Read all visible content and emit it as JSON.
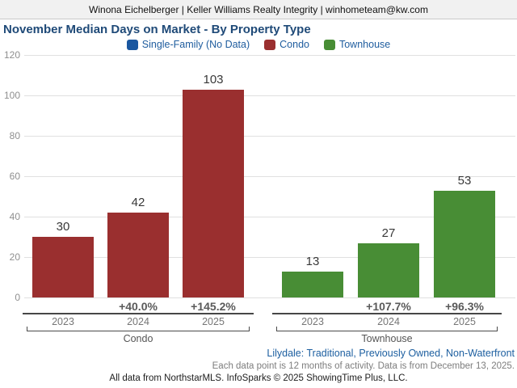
{
  "header": {
    "contact": "Winona Eichelberger | Keller Williams Realty Integrity | winhometeam@kw.com"
  },
  "title": "November Median Days on Market - By Property Type",
  "legend": [
    {
      "label": "Single-Family (No Data)",
      "color": "#1a57a0"
    },
    {
      "label": "Condo",
      "color": "#9a2f2f"
    },
    {
      "label": "Townhouse",
      "color": "#488d35"
    }
  ],
  "chart_data": {
    "type": "bar",
    "title": "November Median Days on Market - By Property Type",
    "xlabel": "",
    "ylabel": "",
    "ylim": [
      0,
      120
    ],
    "ytick_step": 20,
    "grid": true,
    "legend_position": "top",
    "series": [
      {
        "name": "Single-Family",
        "color": "#1a57a0",
        "note": "No Data",
        "categories": [],
        "values": [],
        "pct_change": []
      },
      {
        "name": "Condo",
        "color": "#9a2f2f",
        "categories": [
          "2023",
          "2024",
          "2025"
        ],
        "values": [
          30,
          42,
          103
        ],
        "pct_change": [
          null,
          "+40.0%",
          "+145.2%"
        ]
      },
      {
        "name": "Townhouse",
        "color": "#488d35",
        "categories": [
          "2023",
          "2024",
          "2025"
        ],
        "values": [
          13,
          27,
          53
        ],
        "pct_change": [
          null,
          "+107.7%",
          "+96.3%"
        ]
      }
    ]
  },
  "footnotes": {
    "filter": "Lilydale: Traditional, Previously Owned, Non-Waterfront",
    "data_note": "Each data point is 12 months of activity. Data is from December 13, 2025.",
    "attribution": "All data from NorthstarMLS. InfoSparks © 2025 ShowingTime Plus, LLC."
  }
}
